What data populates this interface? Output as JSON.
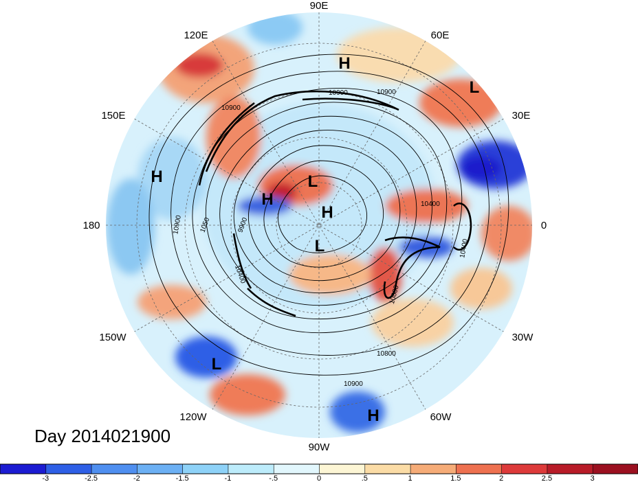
{
  "title_date": "Day 2014021900",
  "longitude_labels": {
    "n90e": "90E",
    "n60e": "60E",
    "n30e": "30E",
    "n0": "0",
    "n30w": "30W",
    "n60w": "60W",
    "n90w": "90W",
    "n120w": "120W",
    "n150w": "150W",
    "n180": "180",
    "n150e": "150E",
    "n120e": "120E"
  },
  "pressure_centers": [
    {
      "label": "H",
      "kind": "high"
    },
    {
      "label": "L",
      "kind": "low"
    },
    {
      "label": "H",
      "kind": "high"
    },
    {
      "label": "L",
      "kind": "low"
    },
    {
      "label": "H",
      "kind": "high"
    },
    {
      "label": "H",
      "kind": "high"
    },
    {
      "label": "L",
      "kind": "low"
    },
    {
      "label": "L",
      "kind": "low"
    },
    {
      "label": "H",
      "kind": "high"
    }
  ],
  "contour_labels": [
    "10900",
    "10900",
    "10900",
    "10900",
    "10900",
    "10800",
    "10800",
    "10400",
    "10400",
    "10400",
    "9900",
    "1050"
  ],
  "colorbar": {
    "ticks": [
      "-3",
      "-2.5",
      "-2",
      "-1.5",
      "-1",
      "-.5",
      "0",
      ".5",
      "1",
      "1.5",
      "2",
      "2.5",
      "3"
    ],
    "colors": [
      "#1c1cd2",
      "#2e5fe6",
      "#4f8ff0",
      "#6cb0f4",
      "#8ed2f8",
      "#bdecfb",
      "#e2f7fd",
      "#fdf6d5",
      "#fbdca6",
      "#f6ac78",
      "#ee7150",
      "#dd3a3a",
      "#b81c28",
      "#9b1020"
    ]
  },
  "colors": {
    "cool_strong": "#2e5fe6",
    "cool_light": "#bfe6fa",
    "warm_strong": "#dd3a3a",
    "warm_light": "#f8d6a8"
  }
}
